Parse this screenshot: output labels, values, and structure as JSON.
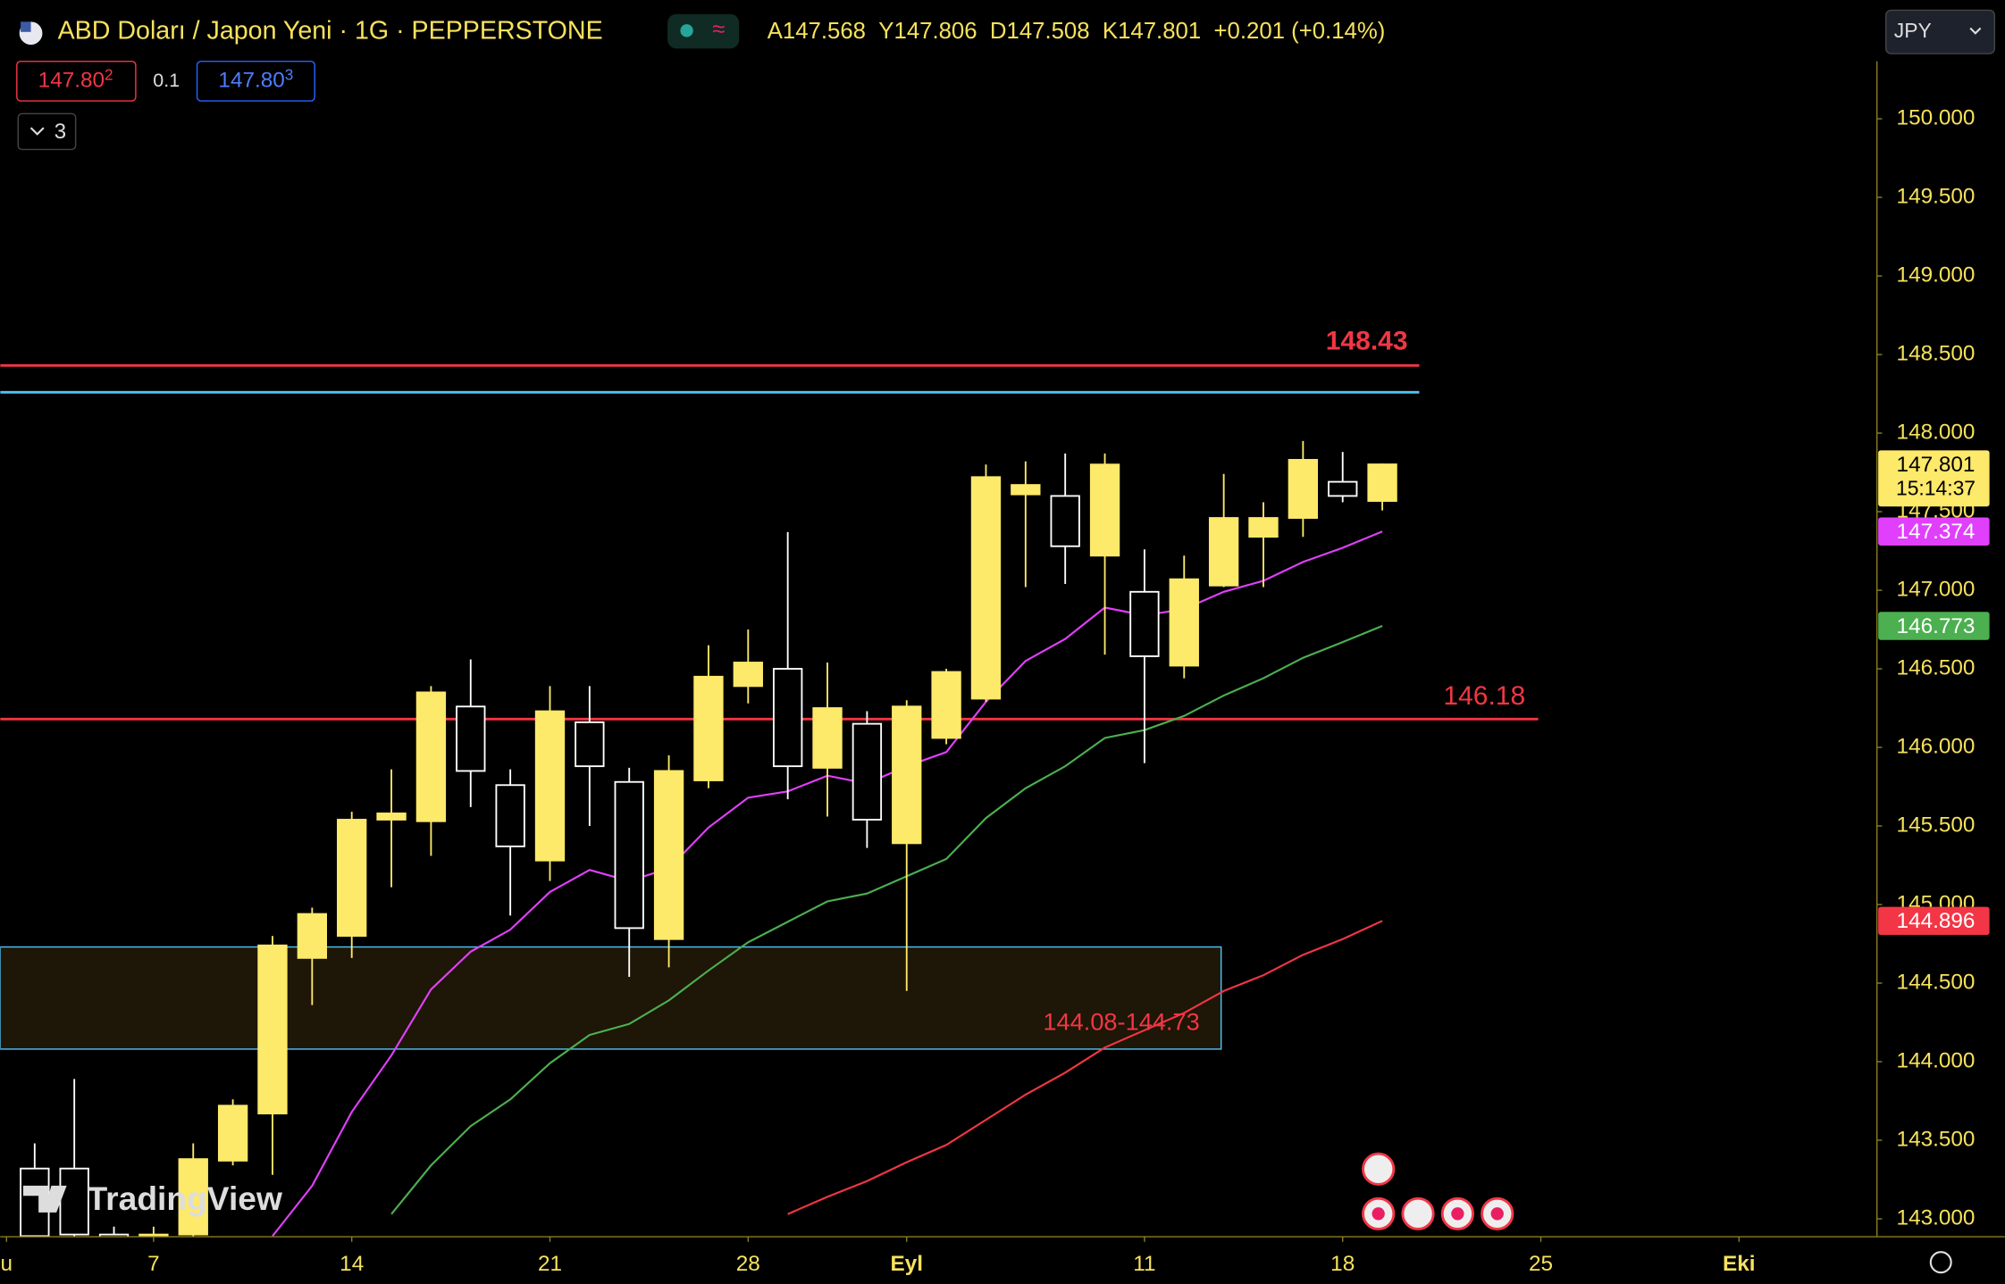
{
  "header": {
    "title": "ABD Doları / Japon Yeni · 1G · PEPPERSTONE",
    "ohlc": [
      {
        "label": "A",
        "value": "147.568"
      },
      {
        "label": "Y",
        "value": "147.806"
      },
      {
        "label": "D",
        "value": "147.508"
      },
      {
        "label": "K",
        "value": "147.801"
      }
    ],
    "change": "+0.201 (+0.14%)",
    "sell": {
      "price": "147.80",
      "pip": "2"
    },
    "spread": "0.1",
    "buy": {
      "price": "147.80",
      "pip": "3"
    },
    "indicators": "3",
    "currency": "JPY",
    "countdown": "15:14:37",
    "logo": "TradingView"
  },
  "chart_data": {
    "type": "candlestick",
    "x": [
      0,
      1,
      2,
      3,
      4,
      5,
      6,
      7,
      8,
      9,
      10,
      11,
      12,
      13,
      14,
      15,
      16,
      17,
      18,
      19,
      20,
      21,
      22,
      23,
      24,
      25,
      26,
      27,
      28,
      29,
      30,
      31,
      32,
      33,
      34
    ],
    "open": [
      143.32,
      143.32,
      142.9,
      142.88,
      142.9,
      143.37,
      143.67,
      144.66,
      144.8,
      145.54,
      145.53,
      146.26,
      145.76,
      145.28,
      146.16,
      145.78,
      144.78,
      145.79,
      146.39,
      146.5,
      145.87,
      146.15,
      145.39,
      146.06,
      146.31,
      147.61,
      147.6,
      147.22,
      146.99,
      146.52,
      147.03,
      147.34,
      147.46,
      147.69,
      147.568
    ],
    "high": [
      143.48,
      143.89,
      142.95,
      142.95,
      143.48,
      143.76,
      144.8,
      144.98,
      145.59,
      145.86,
      146.39,
      146.56,
      145.86,
      146.39,
      146.39,
      145.87,
      145.95,
      146.65,
      146.75,
      147.37,
      146.54,
      146.23,
      146.3,
      146.5,
      147.8,
      147.82,
      147.87,
      147.87,
      147.26,
      147.22,
      147.74,
      147.56,
      147.95,
      147.88,
      147.806
    ],
    "low": [
      142.85,
      142.85,
      142.7,
      142.75,
      142.8,
      143.34,
      143.28,
      144.36,
      144.66,
      145.11,
      145.31,
      145.62,
      144.93,
      145.15,
      145.5,
      144.54,
      144.6,
      145.74,
      146.28,
      145.67,
      145.56,
      145.36,
      144.45,
      146.02,
      146.29,
      147.02,
      147.04,
      146.59,
      145.9,
      146.44,
      147.02,
      147.02,
      147.34,
      147.56,
      147.508
    ],
    "close": [
      142.89,
      142.9,
      142.88,
      142.9,
      143.38,
      143.72,
      144.74,
      144.94,
      145.54,
      145.58,
      146.35,
      145.85,
      145.37,
      146.23,
      145.88,
      144.85,
      145.85,
      146.45,
      146.54,
      145.88,
      146.25,
      145.54,
      146.26,
      146.48,
      147.72,
      147.67,
      147.28,
      147.8,
      146.58,
      147.07,
      147.46,
      147.46,
      147.83,
      147.6,
      147.801
    ],
    "up_color": "#fde96a",
    "down_color": "#ffffff",
    "series": [
      {
        "color": "#e040fb",
        "values": [
          null,
          null,
          null,
          null,
          null,
          null,
          142.89,
          143.21,
          143.68,
          144.04,
          144.46,
          144.7,
          144.84,
          145.08,
          145.22,
          145.15,
          145.23,
          145.49,
          145.68,
          145.72,
          145.82,
          145.77,
          145.88,
          145.97,
          146.29,
          146.55,
          146.69,
          146.89,
          146.84,
          146.88,
          146.99,
          147.06,
          147.18,
          147.27,
          147.374
        ]
      },
      {
        "color": "#4caf50",
        "values": [
          null,
          null,
          null,
          null,
          null,
          null,
          null,
          null,
          null,
          143.03,
          143.34,
          143.59,
          143.76,
          143.99,
          144.17,
          144.24,
          144.39,
          144.58,
          144.76,
          144.89,
          145.02,
          145.07,
          145.18,
          145.29,
          145.55,
          145.74,
          145.88,
          146.06,
          146.11,
          146.2,
          146.33,
          146.44,
          146.57,
          146.67,
          146.773
        ]
      },
      {
        "color": "#f23645",
        "values": [
          null,
          null,
          null,
          null,
          null,
          null,
          null,
          null,
          null,
          null,
          null,
          null,
          null,
          null,
          null,
          null,
          null,
          null,
          null,
          143.03,
          143.14,
          143.24,
          143.36,
          143.47,
          143.63,
          143.79,
          143.93,
          144.09,
          144.2,
          144.31,
          144.45,
          144.55,
          144.68,
          144.78,
          144.896
        ]
      }
    ],
    "levels": [
      {
        "value": 148.43,
        "color": "#f23645"
      },
      {
        "value": 148.26,
        "color": "#4fc3f7"
      },
      {
        "value": 146.18,
        "color": "#f23645"
      }
    ],
    "zone": {
      "low": 144.08,
      "high": 144.73,
      "label": "144.08-144.73",
      "color": "#4fc3f7"
    },
    "xlim": [
      -0.87,
      46.48
    ],
    "ylim": [
      142.886,
      150.756
    ],
    "xticks": [
      {
        "value": -0.71,
        "label": "u"
      },
      {
        "value": 3,
        "label": "7"
      },
      {
        "value": 8,
        "label": "14"
      },
      {
        "value": 13,
        "label": "21"
      },
      {
        "value": 18,
        "label": "28"
      },
      {
        "value": 22,
        "label": "Eyl"
      },
      {
        "value": 28,
        "label": "11"
      },
      {
        "value": 33,
        "label": "18"
      },
      {
        "value": 38,
        "label": "25"
      },
      {
        "value": 43,
        "label": "Eki"
      }
    ],
    "yticks": [
      {
        "value": 143,
        "label": "143.000"
      },
      {
        "value": 143.5,
        "label": "143.500"
      },
      {
        "value": 144,
        "label": "144.000"
      },
      {
        "value": 144.5,
        "label": "144.500"
      },
      {
        "value": 145,
        "label": "145.000"
      },
      {
        "value": 145.5,
        "label": "145.500"
      },
      {
        "value": 146,
        "label": "146.000"
      },
      {
        "value": 146.5,
        "label": "146.500"
      },
      {
        "value": 147,
        "label": "147.000"
      },
      {
        "value": 147.5,
        "label": "147.500"
      },
      {
        "value": 148,
        "label": "148.000"
      },
      {
        "value": 148.5,
        "label": "148.500"
      },
      {
        "value": 149,
        "label": "149.000"
      },
      {
        "value": 149.5,
        "label": "149.500"
      },
      {
        "value": 150,
        "label": "150.000"
      }
    ],
    "grid": false
  }
}
